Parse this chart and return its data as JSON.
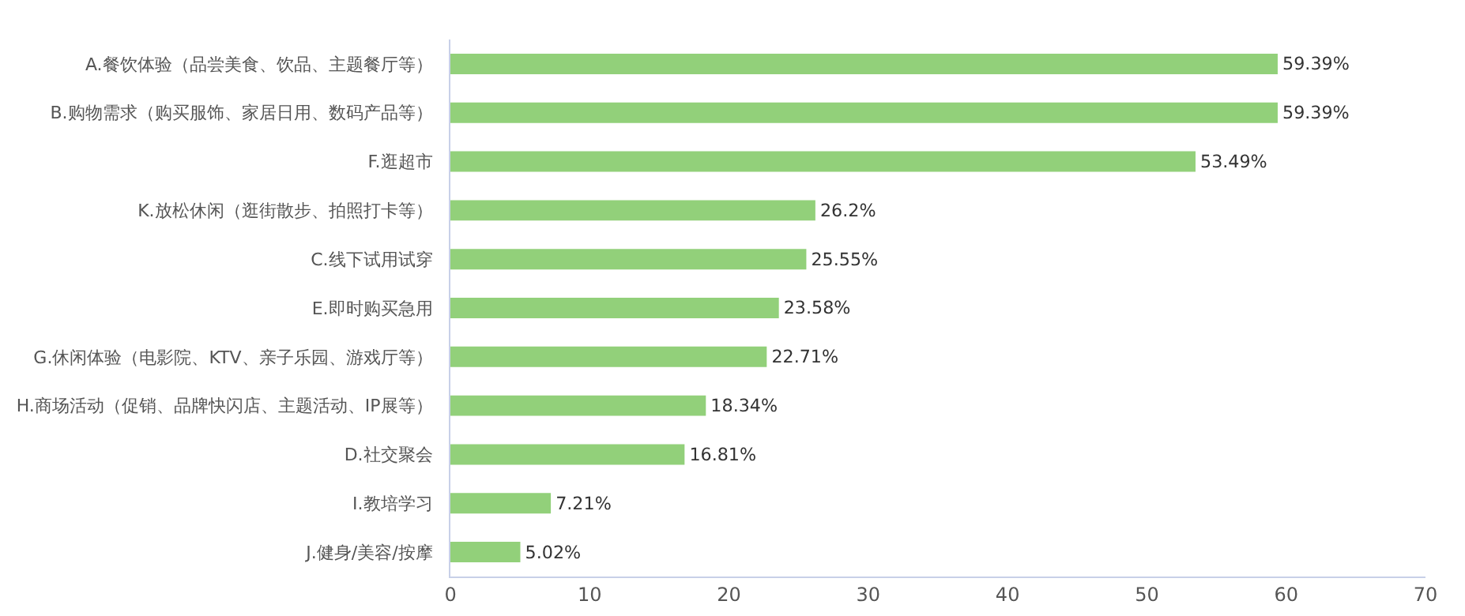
{
  "chart_data": {
    "type": "bar",
    "orientation": "horizontal",
    "categories": [
      "A.餐饮体验（品尝美食、饮品、主题餐厅等）",
      "B.购物需求（购买服饰、家居日用、数码产品等）",
      "F.逛超市",
      "K.放松休闲（逛街散步、拍照打卡等）",
      "C.线下试用试穿",
      "E.即时购买急用",
      "G.休闲体验（电影院、KTV、亲子乐园、游戏厅等）",
      "H.商场活动（促销、品牌快闪店、主题活动、IP展等）",
      "D.社交聚会",
      "I.教培学习",
      "J.健身/美容/按摩"
    ],
    "values": [
      59.39,
      59.39,
      53.49,
      26.2,
      25.55,
      23.58,
      22.71,
      18.34,
      16.81,
      7.21,
      5.02
    ],
    "value_labels": [
      "59.39%",
      "59.39%",
      "53.49%",
      "26.2%",
      "25.55%",
      "23.58%",
      "22.71%",
      "18.34%",
      "16.81%",
      "7.21%",
      "5.02%"
    ],
    "color": "#92d07a",
    "xlim": [
      0,
      70
    ],
    "xticks": [
      0,
      10,
      20,
      30,
      40,
      50,
      60,
      70
    ],
    "grid": false,
    "legend": false
  }
}
